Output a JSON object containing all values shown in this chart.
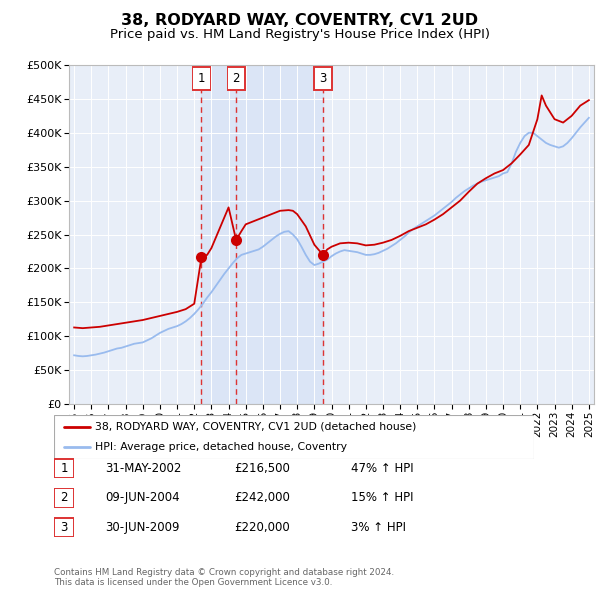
{
  "title": "38, RODYARD WAY, COVENTRY, CV1 2UD",
  "subtitle": "Price paid vs. HM Land Registry's House Price Index (HPI)",
  "title_fontsize": 11.5,
  "subtitle_fontsize": 9.5,
  "background_color": "#ffffff",
  "plot_bg_color": "#e8eef8",
  "grid_color": "#ffffff",
  "ylim": [
    0,
    500000
  ],
  "yticks": [
    0,
    50000,
    100000,
    150000,
    200000,
    250000,
    300000,
    350000,
    400000,
    450000,
    500000
  ],
  "xlim_start": 1994.7,
  "xlim_end": 2025.3,
  "xtick_years": [
    1995,
    1996,
    1997,
    1998,
    1999,
    2000,
    2001,
    2002,
    2003,
    2004,
    2005,
    2006,
    2007,
    2008,
    2009,
    2010,
    2011,
    2012,
    2013,
    2014,
    2015,
    2016,
    2017,
    2018,
    2019,
    2020,
    2021,
    2022,
    2023,
    2024,
    2025
  ],
  "hpi_color": "#99bbee",
  "price_color": "#cc0000",
  "sale_marker_color": "#cc0000",
  "sale_marker_size": 8,
  "vline_color": "#dd3333",
  "vline_style": "--",
  "legend_label_price": "38, RODYARD WAY, COVENTRY, CV1 2UD (detached house)",
  "legend_label_hpi": "HPI: Average price, detached house, Coventry",
  "shading_color": "#d0ddf5",
  "table_entries": [
    {
      "num": 1,
      "date": "31-MAY-2002",
      "price": "£216,500",
      "change": "47% ↑ HPI",
      "year": 2002.42
    },
    {
      "num": 2,
      "date": "09-JUN-2004",
      "price": "£242,000",
      "change": "15% ↑ HPI",
      "year": 2004.44
    },
    {
      "num": 3,
      "date": "30-JUN-2009",
      "price": "£220,000",
      "change": "3% ↑ HPI",
      "year": 2009.5
    }
  ],
  "footer_text": "Contains HM Land Registry data © Crown copyright and database right 2024.\nThis data is licensed under the Open Government Licence v3.0.",
  "hpi_data_years": [
    1995.0,
    1995.25,
    1995.5,
    1995.75,
    1996.0,
    1996.25,
    1996.5,
    1996.75,
    1997.0,
    1997.25,
    1997.5,
    1997.75,
    1998.0,
    1998.25,
    1998.5,
    1998.75,
    1999.0,
    1999.25,
    1999.5,
    1999.75,
    2000.0,
    2000.25,
    2000.5,
    2000.75,
    2001.0,
    2001.25,
    2001.5,
    2001.75,
    2002.0,
    2002.25,
    2002.5,
    2002.75,
    2003.0,
    2003.25,
    2003.5,
    2003.75,
    2004.0,
    2004.25,
    2004.5,
    2004.75,
    2005.0,
    2005.25,
    2005.5,
    2005.75,
    2006.0,
    2006.25,
    2006.5,
    2006.75,
    2007.0,
    2007.25,
    2007.5,
    2007.75,
    2008.0,
    2008.25,
    2008.5,
    2008.75,
    2009.0,
    2009.25,
    2009.5,
    2009.75,
    2010.0,
    2010.25,
    2010.5,
    2010.75,
    2011.0,
    2011.25,
    2011.5,
    2011.75,
    2012.0,
    2012.25,
    2012.5,
    2012.75,
    2013.0,
    2013.25,
    2013.5,
    2013.75,
    2014.0,
    2014.25,
    2014.5,
    2014.75,
    2015.0,
    2015.25,
    2015.5,
    2015.75,
    2016.0,
    2016.25,
    2016.5,
    2016.75,
    2017.0,
    2017.25,
    2017.5,
    2017.75,
    2018.0,
    2018.25,
    2018.5,
    2018.75,
    2019.0,
    2019.25,
    2019.5,
    2019.75,
    2020.0,
    2020.25,
    2020.5,
    2020.75,
    2021.0,
    2021.25,
    2021.5,
    2021.75,
    2022.0,
    2022.25,
    2022.5,
    2022.75,
    2023.0,
    2023.25,
    2023.5,
    2023.75,
    2024.0,
    2024.25,
    2024.5,
    2024.75,
    2025.0
  ],
  "hpi_data_values": [
    72000,
    71000,
    70500,
    71000,
    72000,
    73000,
    74500,
    76000,
    78000,
    80000,
    82000,
    83000,
    85000,
    87000,
    89000,
    90000,
    91000,
    94000,
    97000,
    101000,
    105000,
    108000,
    111000,
    113000,
    115000,
    118000,
    122000,
    127000,
    133000,
    140000,
    148000,
    157000,
    165000,
    174000,
    183000,
    192000,
    200000,
    208000,
    215000,
    220000,
    222000,
    224000,
    226000,
    228000,
    232000,
    237000,
    242000,
    247000,
    251000,
    254000,
    255000,
    250000,
    243000,
    232000,
    220000,
    210000,
    205000,
    207000,
    210000,
    213000,
    218000,
    222000,
    225000,
    227000,
    226000,
    225000,
    224000,
    222000,
    220000,
    220000,
    221000,
    223000,
    226000,
    229000,
    233000,
    237000,
    242000,
    247000,
    253000,
    258000,
    262000,
    266000,
    270000,
    274000,
    278000,
    283000,
    288000,
    293000,
    298000,
    304000,
    309000,
    314000,
    318000,
    322000,
    325000,
    328000,
    330000,
    332000,
    334000,
    336000,
    340000,
    342000,
    355000,
    372000,
    385000,
    395000,
    400000,
    400000,
    395000,
    390000,
    385000,
    382000,
    380000,
    378000,
    380000,
    385000,
    392000,
    400000,
    408000,
    415000,
    422000
  ],
  "price_data_years": [
    1995.0,
    1995.5,
    1996.0,
    1996.5,
    1997.0,
    1997.5,
    1998.0,
    1998.5,
    1999.0,
    1999.5,
    2000.0,
    2000.5,
    2001.0,
    2001.5,
    2002.0,
    2002.42,
    2002.75,
    2003.0,
    2003.5,
    2004.0,
    2004.44,
    2004.75,
    2005.0,
    2005.5,
    2006.0,
    2006.5,
    2007.0,
    2007.5,
    2007.75,
    2008.0,
    2008.5,
    2009.0,
    2009.5,
    2009.75,
    2010.0,
    2010.5,
    2011.0,
    2011.5,
    2012.0,
    2012.5,
    2013.0,
    2013.5,
    2014.0,
    2014.5,
    2015.0,
    2015.5,
    2016.0,
    2016.5,
    2017.0,
    2017.5,
    2018.0,
    2018.5,
    2019.0,
    2019.5,
    2020.0,
    2020.5,
    2021.0,
    2021.5,
    2022.0,
    2022.25,
    2022.5,
    2022.75,
    2023.0,
    2023.5,
    2024.0,
    2024.5,
    2025.0
  ],
  "price_data_values": [
    113000,
    112000,
    113000,
    114000,
    116000,
    118000,
    120000,
    122000,
    124000,
    127000,
    130000,
    133000,
    136000,
    140000,
    148000,
    216500,
    220000,
    230000,
    260000,
    290000,
    242000,
    255000,
    265000,
    270000,
    275000,
    280000,
    285000,
    286000,
    285000,
    280000,
    262000,
    235000,
    220000,
    228000,
    232000,
    237000,
    238000,
    237000,
    234000,
    235000,
    238000,
    242000,
    248000,
    255000,
    260000,
    265000,
    272000,
    280000,
    290000,
    300000,
    313000,
    325000,
    333000,
    340000,
    345000,
    355000,
    368000,
    382000,
    420000,
    455000,
    440000,
    430000,
    420000,
    415000,
    425000,
    440000,
    448000
  ],
  "sale_points": [
    {
      "year": 2002.42,
      "value": 216500,
      "label": "1"
    },
    {
      "year": 2004.44,
      "value": 242000,
      "label": "2"
    },
    {
      "year": 2009.5,
      "value": 220000,
      "label": "3"
    }
  ]
}
